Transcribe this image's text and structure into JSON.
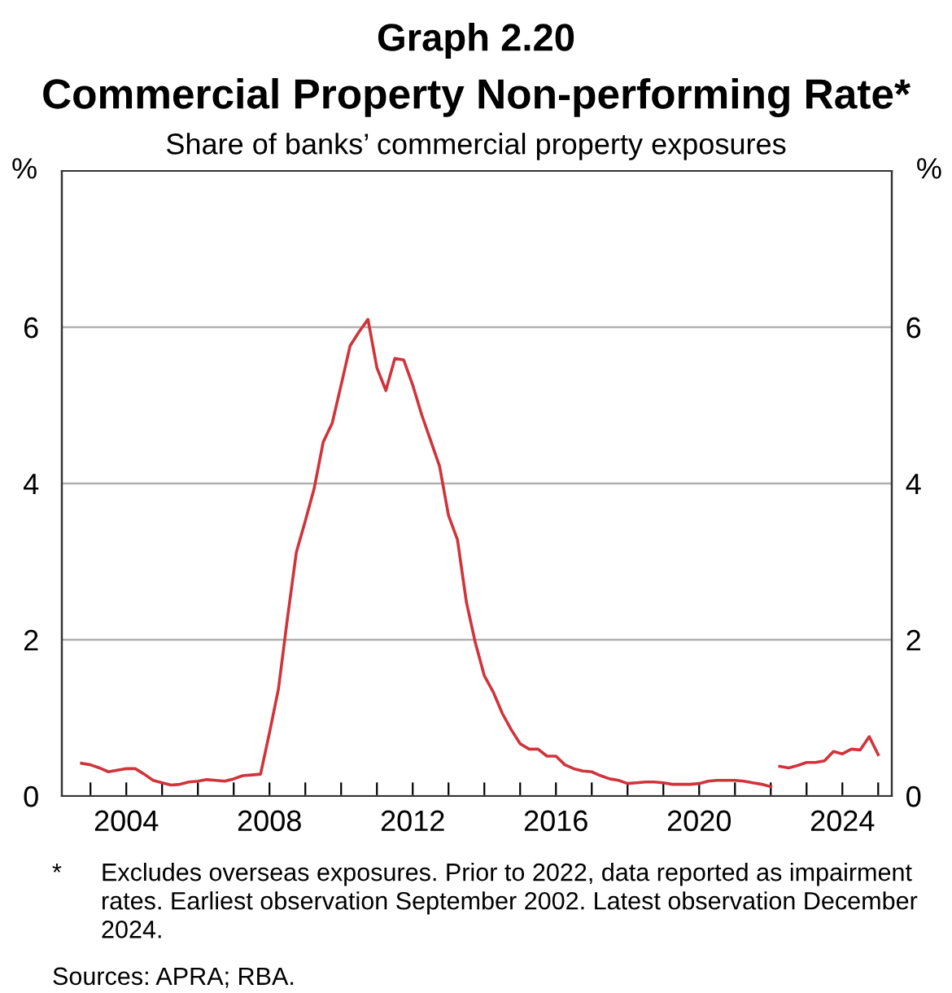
{
  "chart_data": {
    "type": "line",
    "title": "Graph 2.20",
    "subtitle": "Commercial Property Non-performing Rate*",
    "ylabel": "%",
    "y2label": "%",
    "annotations": [
      "Share of banks’ commercial property exposures",
      "*\tExcludes overseas exposures. Prior to 2022, data reported as impairment rates. Earliest observation September 2002. Latest observation December 2024.",
      "Sources: APRA; RBA."
    ],
    "series": [
      {
        "color": "#d0343a",
        "x": [
          2002.75,
          2003.0,
          2003.25,
          2003.5,
          2003.75,
          2004.0,
          2004.25,
          2004.5,
          2004.75,
          2005.0,
          2005.25,
          2005.5,
          2005.75,
          2006.0,
          2006.25,
          2006.5,
          2006.75,
          2007.0,
          2007.25,
          2007.5,
          2007.75,
          2008.0,
          2008.25,
          2008.5,
          2008.75,
          2009.0,
          2009.25,
          2009.5,
          2009.75,
          2010.0,
          2010.25,
          2010.5,
          2010.75,
          2011.0,
          2011.25,
          2011.5,
          2011.75,
          2012.0,
          2012.25,
          2012.5,
          2012.75,
          2013.0,
          2013.25,
          2013.5,
          2013.75,
          2014.0,
          2014.25,
          2014.5,
          2014.75,
          2015.0,
          2015.25,
          2015.5,
          2015.75,
          2016.0,
          2016.25,
          2016.5,
          2016.75,
          2017.0,
          2017.25,
          2017.5,
          2017.75,
          2018.0,
          2018.25,
          2018.5,
          2018.75,
          2019.0,
          2019.25,
          2019.5,
          2019.75,
          2020.0,
          2020.25,
          2020.5,
          2020.75,
          2021.0,
          2021.25,
          2021.5,
          2021.75,
          2022.0,
          2022.125,
          2022.25,
          2022.5,
          2022.75,
          2023.0,
          2023.25,
          2023.5,
          2023.75,
          2024.0,
          2024.25,
          2024.5,
          2024.75,
          2025.0
        ],
        "values": [
          0.42,
          0.4,
          0.36,
          0.31,
          0.33,
          0.35,
          0.35,
          0.28,
          0.2,
          0.17,
          0.14,
          0.15,
          0.18,
          0.19,
          0.21,
          0.2,
          0.19,
          0.22,
          0.26,
          0.27,
          0.28,
          0.81,
          1.37,
          2.27,
          3.12,
          3.52,
          3.94,
          4.53,
          4.77,
          5.26,
          5.76,
          5.94,
          6.1,
          5.48,
          5.19,
          5.6,
          5.58,
          5.26,
          4.88,
          4.55,
          4.22,
          3.59,
          3.28,
          2.48,
          1.96,
          1.54,
          1.33,
          1.06,
          0.85,
          0.67,
          0.6,
          0.6,
          0.51,
          0.51,
          0.4,
          0.35,
          0.32,
          0.31,
          0.26,
          0.22,
          0.2,
          0.16,
          0.17,
          0.18,
          0.18,
          0.17,
          0.15,
          0.15,
          0.15,
          0.16,
          0.19,
          0.2,
          0.2,
          0.2,
          0.19,
          0.17,
          0.15,
          0.12,
          null,
          0.38,
          0.36,
          0.39,
          0.43,
          0.43,
          0.45,
          0.57,
          0.54,
          0.6,
          0.59,
          0.76,
          0.53
        ]
      }
    ],
    "xlim": [
      2002.2,
      2025.38
    ],
    "xticks": [
      {
        "value": 2003,
        "label": null
      },
      2004,
      {
        "value": 2005,
        "label": null
      },
      {
        "value": 2006,
        "label": null
      },
      {
        "value": 2007,
        "label": null
      },
      2008,
      {
        "value": 2009,
        "label": null
      },
      {
        "value": 2010,
        "label": null
      },
      {
        "value": 2011,
        "label": null
      },
      2012,
      {
        "value": 2013,
        "label": null
      },
      {
        "value": 2014,
        "label": null
      },
      {
        "value": 2015,
        "label": null
      },
      2016,
      {
        "value": 2017,
        "label": null
      },
      {
        "value": 2018,
        "label": null
      },
      {
        "value": 2019,
        "label": null
      },
      2020,
      {
        "value": 2021,
        "label": null
      },
      {
        "value": 2022,
        "label": null
      },
      {
        "value": 2023,
        "label": null
      },
      2024,
      {
        "value": 2025,
        "label": null
      }
    ],
    "ylim": [
      0,
      8
    ],
    "yticks": [
      0,
      2,
      4,
      6
    ],
    "y2lim": [
      0,
      8
    ],
    "y2ticks": [
      0,
      2,
      4,
      6
    ],
    "grid": "y",
    "line_style": "solid",
    "marker": "none",
    "legend": false
  }
}
